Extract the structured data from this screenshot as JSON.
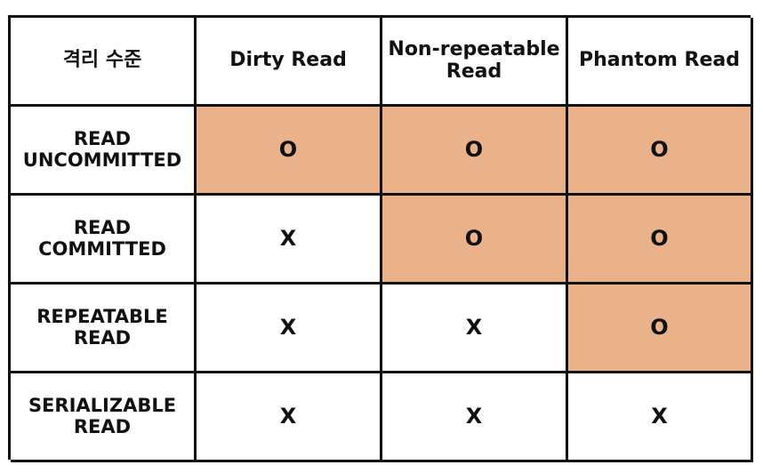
{
  "table": {
    "headers": [
      "격리 수준",
      "Dirty Read",
      "Non-repeatable Read",
      "Phantom Read"
    ],
    "header_lines": {
      "non_repeatable": [
        "Non-repeatable",
        "Read"
      ]
    },
    "rows": [
      {
        "label_lines": [
          "READ",
          "UNCOMMITTED"
        ],
        "values": [
          "O",
          "O",
          "O"
        ],
        "highlighted": [
          true,
          true,
          true
        ]
      },
      {
        "label_lines": [
          "READ",
          "COMMITTED"
        ],
        "values": [
          "X",
          "O",
          "O"
        ],
        "highlighted": [
          false,
          true,
          true
        ]
      },
      {
        "label_lines": [
          "REPEATABLE",
          "READ"
        ],
        "values": [
          "X",
          "X",
          "O"
        ],
        "highlighted": [
          false,
          false,
          true
        ]
      },
      {
        "label_lines": [
          "SERIALIZABLE",
          "READ"
        ],
        "values": [
          "X",
          "X",
          "X"
        ],
        "highlighted": [
          false,
          false,
          false
        ]
      }
    ]
  },
  "colors": {
    "highlight": "#e9b28a",
    "border": "#111111",
    "background": "#ffffff"
  }
}
